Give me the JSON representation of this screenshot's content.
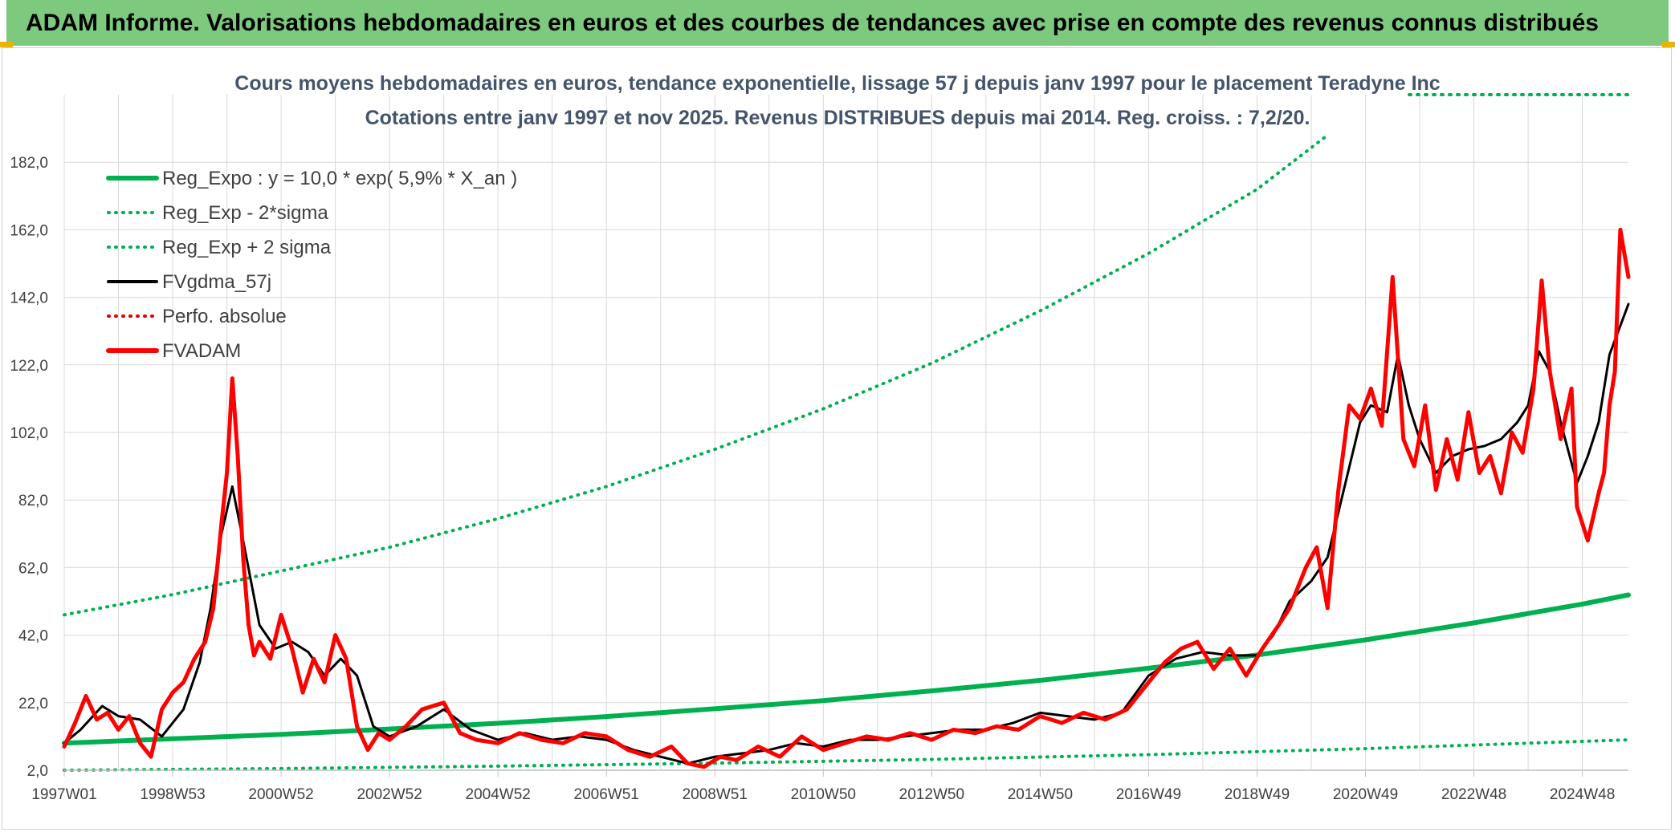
{
  "header": {
    "banner": "ADAM Informe. Valorisations hebdomadaires en euros et des courbes de tendances avec prise en compte des revenus connus distribués",
    "banner_color": "#7dc97d"
  },
  "chart_data": {
    "type": "line",
    "title_line1": "Cours moyens hebdomadaires en euros, tendance exponentielle, lissage 57 j depuis janv 1997 pour le placement Teradyne Inc",
    "title_line2": "Cotations entre janv 1997 et nov 2025. Revenus DISTRIBUES depuis mai 2014. Reg. croiss. : 7,2/20.",
    "xlabel": "",
    "ylabel": "",
    "ylim": [
      2,
      202
    ],
    "xlim": [
      1997.0,
      2025.85
    ],
    "y_ticks": [
      "182,0",
      "162,0",
      "142,0",
      "122,0",
      "102,0",
      "82,0",
      "62,0",
      "42,0",
      "22,0",
      "2,0"
    ],
    "y_tick_values": [
      182,
      162,
      142,
      122,
      102,
      82,
      62,
      42,
      22,
      2
    ],
    "x_ticks": [
      "1997W01",
      "1998W53",
      "2000W52",
      "2002W52",
      "2004W52",
      "2006W51",
      "2008W51",
      "2010W50",
      "2012W50",
      "2014W50",
      "2016W49",
      "2018W49",
      "2020W49",
      "2022W48",
      "2024W48"
    ],
    "x_tick_values": [
      1997.0,
      1999.0,
      2001.0,
      2003.0,
      2005.0,
      2007.0,
      2009.0,
      2011.0,
      2013.0,
      2015.0,
      2017.0,
      2019.0,
      2021.0,
      2023.0,
      2025.0
    ],
    "grid": true,
    "legend_position": "top-left",
    "series": [
      {
        "name": "Reg_Expo : y = 10,0 * exp( 5,9% *  X_an )",
        "color": "#00b050",
        "style": "solid",
        "width": 6,
        "x": [
          1997.0,
          1999.0,
          2001.0,
          2003.0,
          2005.0,
          2007.0,
          2009.0,
          2011.0,
          2013.0,
          2015.0,
          2017.0,
          2019.0,
          2021.0,
          2023.0,
          2025.0,
          2025.85
        ],
        "values": [
          10.0,
          11.3,
          12.6,
          14.2,
          15.9,
          17.9,
          20.2,
          22.6,
          25.5,
          28.6,
          32.2,
          36.1,
          40.6,
          45.6,
          51.2,
          53.9
        ]
      },
      {
        "name": "Reg_Exp - 2*sigma",
        "color": "#00b050",
        "style": "dotted",
        "width": 4,
        "x": [
          1997.0,
          2001.0,
          2005.0,
          2009.0,
          2013.0,
          2017.0,
          2021.0,
          2025.85
        ],
        "values": [
          2.0,
          2.5,
          3.2,
          4.1,
          5.2,
          6.6,
          8.4,
          11.0
        ]
      },
      {
        "name": "Reg_Exp + 2 sigma",
        "color": "#00b050",
        "style": "dotted",
        "width": 4,
        "x": [
          1997.0,
          1999.0,
          2001.0,
          2003.0,
          2005.0,
          2007.0,
          2009.0,
          2011.0,
          2013.0,
          2015.0,
          2017.0,
          2019.0,
          2020.3
        ],
        "values": [
          48.0,
          54.0,
          61.0,
          68.0,
          76.5,
          86.0,
          97.0,
          109.0,
          122.5,
          138.0,
          155.0,
          174.0,
          190.0
        ]
      },
      {
        "name": "FVgdma_57j",
        "color": "#000000",
        "style": "solid",
        "width": 3,
        "x": [
          1997.0,
          1997.3,
          1997.7,
          1998.0,
          1998.4,
          1998.8,
          1999.2,
          1999.5,
          1999.7,
          1999.9,
          2000.1,
          2000.3,
          2000.6,
          2000.9,
          2001.2,
          2001.5,
          2001.8,
          2002.1,
          2002.4,
          2002.7,
          2003.0,
          2003.5,
          2004.0,
          2004.5,
          2005.0,
          2005.5,
          2006.0,
          2006.5,
          2007.0,
          2007.5,
          2008.0,
          2008.5,
          2009.0,
          2009.5,
          2010.0,
          2010.5,
          2011.0,
          2011.5,
          2012.0,
          2012.5,
          2013.0,
          2013.5,
          2014.0,
          2014.5,
          2015.0,
          2015.5,
          2016.0,
          2016.5,
          2017.0,
          2017.5,
          2018.0,
          2018.5,
          2019.0,
          2019.3,
          2019.6,
          2020.0,
          2020.3,
          2020.6,
          2020.9,
          2021.1,
          2021.4,
          2021.6,
          2021.8,
          2022.0,
          2022.3,
          2022.6,
          2022.9,
          2023.2,
          2023.5,
          2023.8,
          2024.0,
          2024.2,
          2024.4,
          2024.6,
          2024.9,
          2025.1,
          2025.3,
          2025.5,
          2025.85
        ],
        "values": [
          10.0,
          14.0,
          21.0,
          18.0,
          17.0,
          12.0,
          20.0,
          34.0,
          50.0,
          72.0,
          86.0,
          70.0,
          45.0,
          38.0,
          40.0,
          37.0,
          30.0,
          35.0,
          30.0,
          15.0,
          12.0,
          15.0,
          20.0,
          14.0,
          11.0,
          13.0,
          11.0,
          12.0,
          11.0,
          8.0,
          6.0,
          4.0,
          6.0,
          7.0,
          8.0,
          10.0,
          9.0,
          11.0,
          11.0,
          12.0,
          13.0,
          14.0,
          14.0,
          16.0,
          19.0,
          18.0,
          17.0,
          19.0,
          30.0,
          35.0,
          37.0,
          36.0,
          36.0,
          42.0,
          52.0,
          58.0,
          65.0,
          85.0,
          105.0,
          110.0,
          108.0,
          125.0,
          110.0,
          100.0,
          90.0,
          95.0,
          97.0,
          98.0,
          100.0,
          105.0,
          110.0,
          126.0,
          120.0,
          105.0,
          87.0,
          95.0,
          105.0,
          125.0,
          140.0
        ]
      },
      {
        "name": "Perfo. absolue",
        "color": "#e00000",
        "style": "dotted",
        "width": 3,
        "x": [],
        "values": []
      },
      {
        "name": "FVADAM",
        "color": "#ff0000",
        "style": "solid",
        "width": 5,
        "x": [
          1997.0,
          1997.2,
          1997.4,
          1997.6,
          1997.8,
          1998.0,
          1998.2,
          1998.4,
          1998.6,
          1998.8,
          1999.0,
          1999.2,
          1999.4,
          1999.6,
          1999.75,
          1999.9,
          2000.0,
          2000.1,
          2000.2,
          2000.3,
          2000.4,
          2000.5,
          2000.6,
          2000.8,
          2001.0,
          2001.2,
          2001.4,
          2001.6,
          2001.8,
          2002.0,
          2002.2,
          2002.4,
          2002.6,
          2002.8,
          2003.0,
          2003.3,
          2003.6,
          2004.0,
          2004.3,
          2004.6,
          2005.0,
          2005.4,
          2005.8,
          2006.2,
          2006.6,
          2007.0,
          2007.4,
          2007.8,
          2008.2,
          2008.5,
          2008.8,
          2009.1,
          2009.4,
          2009.8,
          2010.2,
          2010.6,
          2011.0,
          2011.4,
          2011.8,
          2012.2,
          2012.6,
          2013.0,
          2013.4,
          2013.8,
          2014.2,
          2014.6,
          2015.0,
          2015.4,
          2015.8,
          2016.2,
          2016.6,
          2017.0,
          2017.3,
          2017.6,
          2017.9,
          2018.2,
          2018.5,
          2018.8,
          2019.1,
          2019.4,
          2019.6,
          2019.9,
          2020.1,
          2020.3,
          2020.5,
          2020.7,
          2020.9,
          2021.1,
          2021.3,
          2021.5,
          2021.7,
          2021.9,
          2022.1,
          2022.3,
          2022.5,
          2022.7,
          2022.9,
          2023.1,
          2023.3,
          2023.5,
          2023.7,
          2023.9,
          2024.1,
          2024.25,
          2024.4,
          2024.6,
          2024.8,
          2024.9,
          2025.1,
          2025.3,
          2025.4,
          2025.5,
          2025.6,
          2025.7,
          2025.85
        ],
        "values": [
          9.0,
          16.0,
          24.0,
          17.0,
          19.0,
          14.0,
          18.0,
          10.0,
          6.0,
          20.0,
          25.0,
          28.0,
          35.0,
          40.0,
          50.0,
          75.0,
          90.0,
          118.0,
          95.0,
          65.0,
          45.0,
          36.0,
          40.0,
          35.0,
          48.0,
          38.0,
          25.0,
          35.0,
          28.0,
          42.0,
          35.0,
          15.0,
          8.0,
          13.0,
          11.0,
          15.0,
          20.0,
          22.0,
          13.0,
          11.0,
          10.0,
          13.0,
          11.0,
          10.0,
          13.0,
          12.0,
          8.0,
          6.0,
          9.0,
          4.0,
          3.0,
          6.0,
          5.0,
          9.0,
          6.0,
          12.0,
          8.0,
          10.0,
          12.0,
          11.0,
          13.0,
          11.0,
          14.0,
          13.0,
          15.0,
          14.0,
          18.0,
          16.0,
          19.0,
          17.0,
          20.0,
          28.0,
          34.0,
          38.0,
          40.0,
          32.0,
          38.0,
          30.0,
          38.0,
          45.0,
          50.0,
          62.0,
          68.0,
          50.0,
          85.0,
          110.0,
          106.0,
          115.0,
          104.0,
          148.0,
          100.0,
          92.0,
          110.0,
          85.0,
          100.0,
          88.0,
          108.0,
          90.0,
          95.0,
          84.0,
          102.0,
          96.0,
          115.0,
          147.0,
          120.0,
          100.0,
          115.0,
          80.0,
          70.0,
          84.0,
          90.0,
          110.0,
          120.0,
          162.0,
          148.0
        ]
      }
    ]
  }
}
